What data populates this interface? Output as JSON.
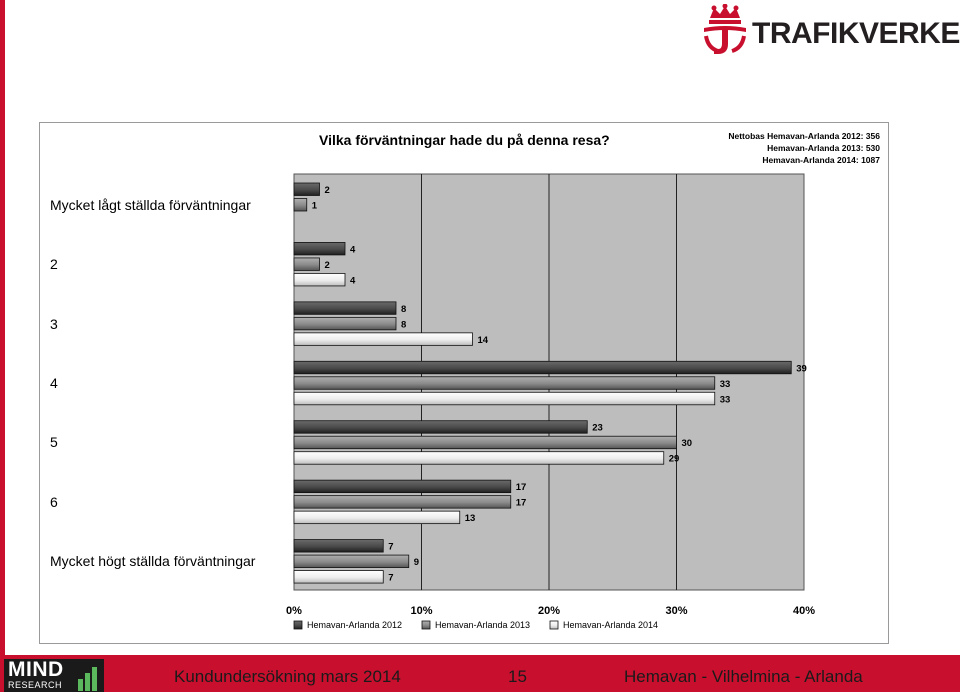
{
  "header": {
    "brand": "TRAFIKVERKET"
  },
  "footer": {
    "left": "Kundundersökning mars 2014",
    "page": "15",
    "right": "Hemavan - Vilhelmina - Arlanda",
    "logo_main": "MIND",
    "logo_sub": "RESEARCH"
  },
  "colors": {
    "brand_red": "#c8102e",
    "plot_bg": "#bdbdbd",
    "s2012": "#3a3a3a",
    "s2013": "#7a7a7a",
    "s2014": "#efefef"
  },
  "chart_data": {
    "type": "bar",
    "orientation": "horizontal",
    "title": "Vilka förväntningar hade du på denna resa?",
    "base_lines": [
      "Nettobas  Hemavan-Arlanda 2012: 356",
      "Hemavan-Arlanda 2013: 530",
      "Hemavan-Arlanda 2014: 1087"
    ],
    "categories": [
      "Mycket lågt ställda förväntningar",
      "2",
      "3",
      "4",
      "5",
      "6",
      "Mycket högt ställda förväntningar"
    ],
    "series": [
      {
        "name": "Hemavan-Arlanda 2012",
        "values": [
          2,
          4,
          8,
          39,
          23,
          17,
          7
        ]
      },
      {
        "name": "Hemavan-Arlanda 2013",
        "values": [
          1,
          2,
          8,
          33,
          30,
          17,
          9
        ]
      },
      {
        "name": "Hemavan-Arlanda 2014",
        "values": [
          null,
          4,
          14,
          33,
          29,
          13,
          7
        ]
      }
    ],
    "xlim": [
      0,
      40
    ],
    "x_ticks": [
      "0%",
      "10%",
      "20%",
      "30%",
      "40%"
    ],
    "unit": "%",
    "grid": true,
    "legend_position": "bottom"
  }
}
